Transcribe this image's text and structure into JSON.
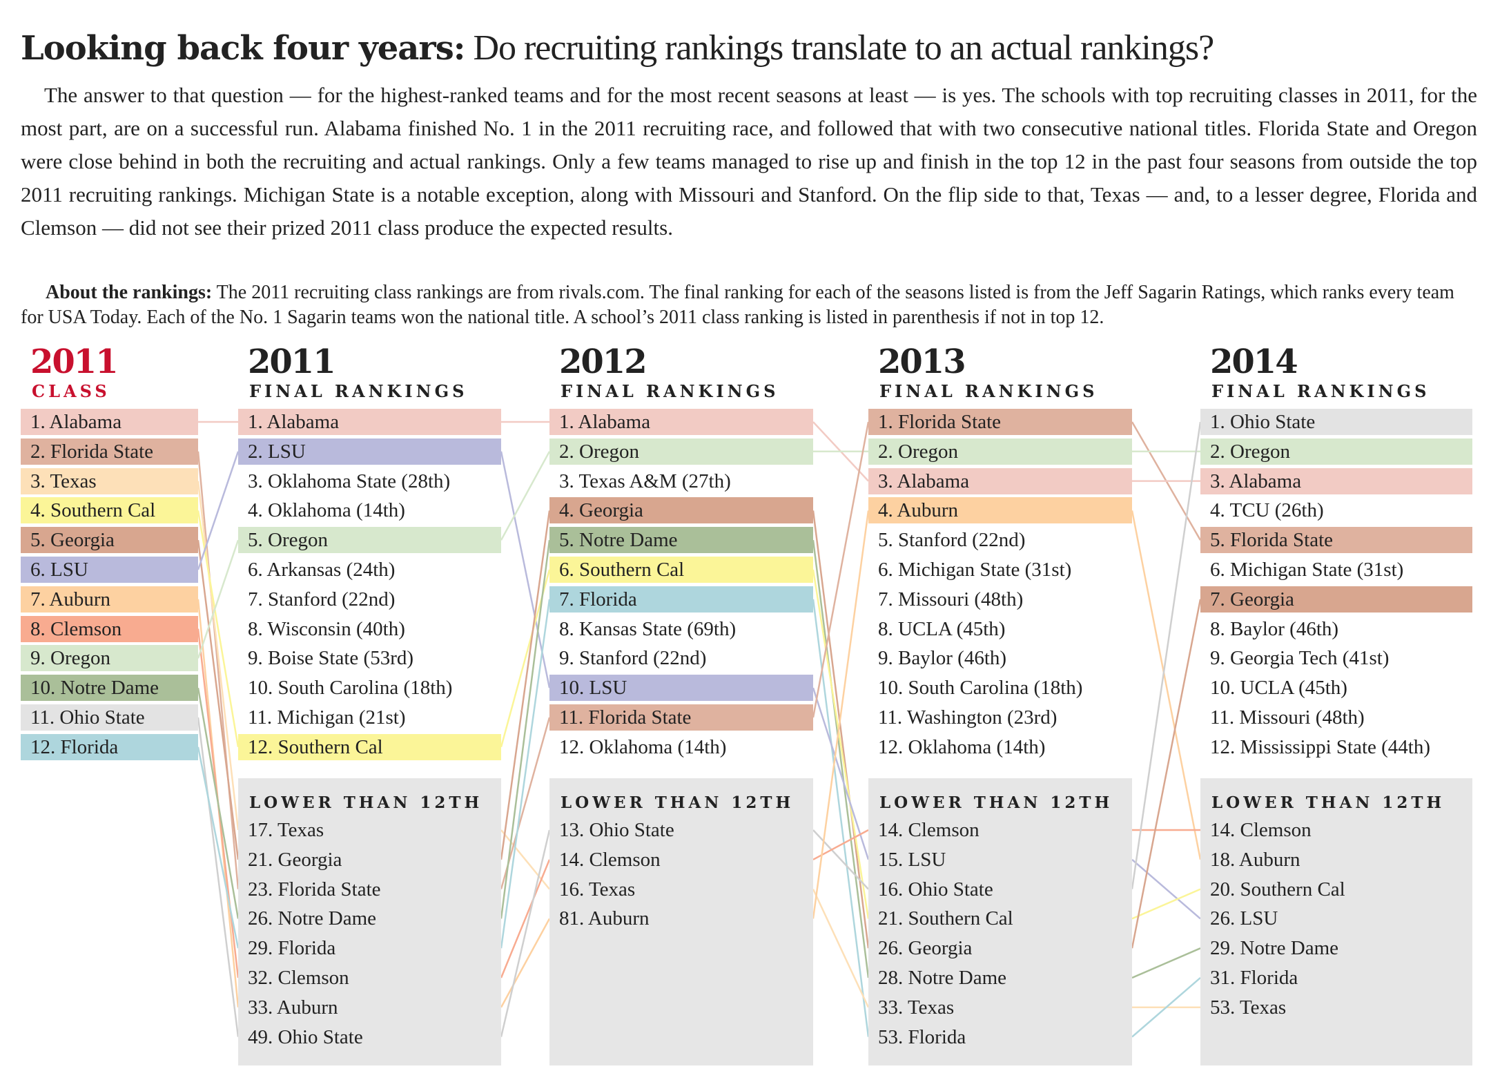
{
  "title": {
    "bold": "Looking back four years:",
    "rest": " Do recruiting rankings translate to an actual rankings?"
  },
  "intro": "The answer to that question — for the highest-ranked teams and for the most recent seasons at least — is yes. The schools with top recruiting classes in 2011, for the most part, are on a successful run. Alabama finished No. 1 in the 2011 recruiting race, and followed that with two consecutive national titles. Florida State and Oregon were close behind in both the recruiting and actual rankings. Only a few teams managed to rise up and finish in the top 12 in the past four seasons from outside the top 2011 recruiting rankings. Michigan State is a notable exception, along with Missouri and Stanford. On the flip side to that, Texas — and, to a lesser degree, Florida and Clemson — did not see their prized 2011 class produce the expected results.",
  "about": {
    "label": "About the rankings:",
    "text": " The 2011 recruiting class rankings are from rivals.com. The final ranking for each of the seasons listed is from the Jeff Sagarin Ratings, which ranks every team for USA Today. Each of the No. 1 Sagarin teams won the national title. A school’s 2011 class ranking is listed in parenthesis if not in top 12."
  },
  "team_colors": {
    "alabama": "#f2cbc4",
    "fsu": "#dfb29f",
    "texas": "#fde0b8",
    "usc": "#fbf598",
    "georgia": "#d8a68f",
    "lsu": "#b9badc",
    "auburn": "#fdd1a1",
    "clemson": "#f8ab90",
    "oregon": "#d7e8cd",
    "notredame": "#aabf99",
    "ohiostate": "#e3e3e3",
    "florida": "#aed6dd"
  },
  "lower_label": "LOWER THAN 12TH",
  "columns": [
    {
      "year": "2011",
      "sub": "CLASS",
      "red": true,
      "top": [
        {
          "t": "1. Alabama",
          "team": "alabama"
        },
        {
          "t": "2. Florida State",
          "team": "fsu"
        },
        {
          "t": "3. Texas",
          "team": "texas"
        },
        {
          "t": "4. Southern Cal",
          "team": "usc"
        },
        {
          "t": "5. Georgia",
          "team": "georgia"
        },
        {
          "t": "6. LSU",
          "team": "lsu"
        },
        {
          "t": "7. Auburn",
          "team": "auburn"
        },
        {
          "t": "8. Clemson",
          "team": "clemson"
        },
        {
          "t": "9. Oregon",
          "team": "oregon"
        },
        {
          "t": "10. Notre Dame",
          "team": "notredame"
        },
        {
          "t": "11. Ohio State",
          "team": "ohiostate"
        },
        {
          "t": "12. Florida",
          "team": "florida"
        }
      ],
      "lower": []
    },
    {
      "year": "2011",
      "sub": "FINAL RANKINGS",
      "top": [
        {
          "t": "1. Alabama",
          "team": "alabama"
        },
        {
          "t": "2. LSU",
          "team": "lsu"
        },
        {
          "t": "3. Oklahoma State (28th)"
        },
        {
          "t": "4. Oklahoma (14th)"
        },
        {
          "t": "5. Oregon",
          "team": "oregon"
        },
        {
          "t": "6. Arkansas (24th)"
        },
        {
          "t": "7. Stanford (22nd)"
        },
        {
          "t": "8. Wisconsin (40th)"
        },
        {
          "t": "9. Boise State (53rd)"
        },
        {
          "t": "10. South Carolina (18th)"
        },
        {
          "t": "11. Michigan (21st)"
        },
        {
          "t": "12. Southern Cal",
          "team": "usc"
        }
      ],
      "lower": [
        {
          "t": "17. Texas",
          "team": "texas"
        },
        {
          "t": "21. Georgia",
          "team": "georgia"
        },
        {
          "t": "23. Florida State",
          "team": "fsu"
        },
        {
          "t": "26. Notre Dame",
          "team": "notredame"
        },
        {
          "t": "29. Florida",
          "team": "florida"
        },
        {
          "t": "32. Clemson",
          "team": "clemson"
        },
        {
          "t": "33. Auburn",
          "team": "auburn"
        },
        {
          "t": "49. Ohio State",
          "team": "ohiostate"
        }
      ]
    },
    {
      "year": "2012",
      "sub": "FINAL RANKINGS",
      "top": [
        {
          "t": "1. Alabama",
          "team": "alabama"
        },
        {
          "t": "2. Oregon",
          "team": "oregon"
        },
        {
          "t": "3. Texas A&M (27th)"
        },
        {
          "t": "4. Georgia",
          "team": "georgia"
        },
        {
          "t": "5. Notre Dame",
          "team": "notredame"
        },
        {
          "t": "6. Southern Cal",
          "team": "usc"
        },
        {
          "t": "7. Florida",
          "team": "florida"
        },
        {
          "t": "8. Kansas State (69th)"
        },
        {
          "t": "9. Stanford (22nd)"
        },
        {
          "t": "10. LSU",
          "team": "lsu"
        },
        {
          "t": "11. Florida State",
          "team": "fsu"
        },
        {
          "t": "12. Oklahoma (14th)"
        }
      ],
      "lower": [
        {
          "t": "13. Ohio State",
          "team": "ohiostate"
        },
        {
          "t": "14. Clemson",
          "team": "clemson"
        },
        {
          "t": "16. Texas",
          "team": "texas"
        },
        {
          "t": "81. Auburn",
          "team": "auburn"
        }
      ]
    },
    {
      "year": "2013",
      "sub": "FINAL RANKINGS",
      "top": [
        {
          "t": "1. Florida State",
          "team": "fsu"
        },
        {
          "t": "2. Oregon",
          "team": "oregon"
        },
        {
          "t": "3. Alabama",
          "team": "alabama"
        },
        {
          "t": "4. Auburn",
          "team": "auburn"
        },
        {
          "t": "5. Stanford (22nd)"
        },
        {
          "t": "6. Michigan State (31st)"
        },
        {
          "t": "7. Missouri (48th)"
        },
        {
          "t": "8. UCLA (45th)"
        },
        {
          "t": "9. Baylor (46th)"
        },
        {
          "t": "10. South Carolina (18th)"
        },
        {
          "t": "11. Washington (23rd)"
        },
        {
          "t": "12. Oklahoma (14th)"
        }
      ],
      "lower": [
        {
          "t": "14. Clemson",
          "team": "clemson"
        },
        {
          "t": "15. LSU",
          "team": "lsu"
        },
        {
          "t": "16. Ohio State",
          "team": "ohiostate"
        },
        {
          "t": "21. Southern Cal",
          "team": "usc"
        },
        {
          "t": "26. Georgia",
          "team": "georgia"
        },
        {
          "t": "28. Notre Dame",
          "team": "notredame"
        },
        {
          "t": "33. Texas",
          "team": "texas"
        },
        {
          "t": "53. Florida",
          "team": "florida"
        }
      ]
    },
    {
      "year": "2014",
      "sub": "FINAL RANKINGS",
      "top": [
        {
          "t": "1. Ohio State",
          "team": "ohiostate"
        },
        {
          "t": "2. Oregon",
          "team": "oregon"
        },
        {
          "t": "3. Alabama",
          "team": "alabama"
        },
        {
          "t": "4. TCU (26th)"
        },
        {
          "t": "5. Florida State",
          "team": "fsu"
        },
        {
          "t": "6. Michigan State (31st)"
        },
        {
          "t": "7. Georgia",
          "team": "georgia"
        },
        {
          "t": "8. Baylor (46th)"
        },
        {
          "t": "9. Georgia Tech (41st)"
        },
        {
          "t": "10. UCLA (45th)"
        },
        {
          "t": "11. Missouri (48th)"
        },
        {
          "t": "12. Mississippi State (44th)"
        }
      ],
      "lower": [
        {
          "t": "14. Clemson",
          "team": "clemson"
        },
        {
          "t": "18. Auburn",
          "team": "auburn"
        },
        {
          "t": "20. Southern Cal",
          "team": "usc"
        },
        {
          "t": "26. LSU",
          "team": "lsu"
        },
        {
          "t": "29. Notre Dame",
          "team": "notredame"
        },
        {
          "t": "31. Florida",
          "team": "florida"
        },
        {
          "t": "53. Texas",
          "team": "texas"
        }
      ]
    }
  ]
}
